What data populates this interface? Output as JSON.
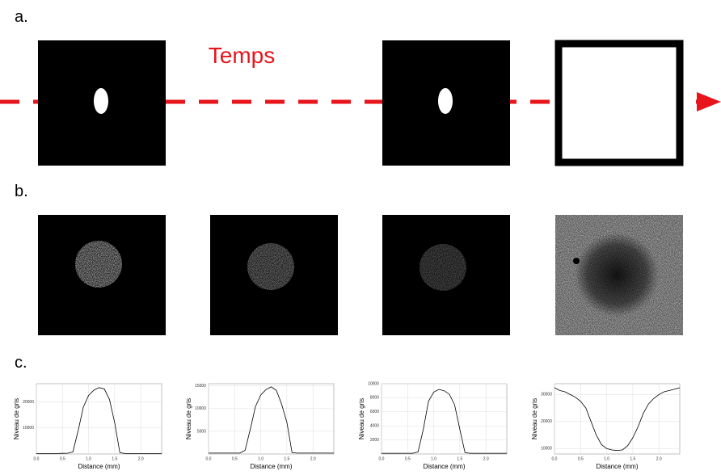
{
  "labels": {
    "a": "a.",
    "b": "b.",
    "c": "c."
  },
  "annotation": "Temps",
  "chart_data": [
    {
      "type": "line",
      "xlabel": "Distance (mm)",
      "ylabel": "Niveau de gris",
      "color": "#000000",
      "grid": true,
      "x": [
        0,
        0.1,
        0.2,
        0.3,
        0.4,
        0.5,
        0.6,
        0.7,
        0.8,
        0.9,
        1.0,
        1.1,
        1.2,
        1.3,
        1.4,
        1.5,
        1.6,
        1.7,
        1.8,
        1.9,
        2.0,
        2.1,
        2.2,
        2.3,
        2.4
      ],
      "values": [
        200,
        200,
        200,
        200,
        200,
        250,
        300,
        800,
        9000,
        18000,
        22500,
        24500,
        25500,
        25000,
        21000,
        12000,
        500,
        200,
        200,
        200,
        200,
        200,
        200,
        200,
        200
      ],
      "xlim": [
        0,
        2.4
      ],
      "ylim": [
        0,
        27000
      ],
      "xticks": [
        {
          "value": 0,
          "label": "0.0"
        },
        {
          "value": 0.5,
          "label": "0.5"
        },
        {
          "value": 1,
          "label": "1.0"
        },
        {
          "value": 1.5,
          "label": "1.5"
        },
        {
          "value": 2,
          "label": "2.0"
        }
      ],
      "yticks": [
        10000,
        20000
      ]
    },
    {
      "type": "line",
      "xlabel": "Distance (mm)",
      "ylabel": "Niveau de gris",
      "color": "#000000",
      "grid": true,
      "x": [
        0,
        0.1,
        0.2,
        0.3,
        0.4,
        0.5,
        0.6,
        0.7,
        0.8,
        0.9,
        1.0,
        1.1,
        1.2,
        1.3,
        1.4,
        1.5,
        1.6,
        1.7,
        1.8,
        1.9,
        2.0,
        2.1,
        2.2,
        2.3,
        2.4
      ],
      "values": [
        200,
        200,
        200,
        200,
        200,
        200,
        200,
        800,
        5500,
        10500,
        13000,
        14200,
        14800,
        14000,
        11000,
        7000,
        300,
        200,
        200,
        200,
        200,
        200,
        200,
        200,
        200
      ],
      "xlim": [
        0,
        2.4
      ],
      "ylim": [
        0,
        15500
      ],
      "xticks": [
        {
          "value": 0,
          "label": "0.0"
        },
        {
          "value": 0.5,
          "label": "0.5"
        },
        {
          "value": 1,
          "label": "1.0"
        },
        {
          "value": 1.5,
          "label": "1.5"
        },
        {
          "value": 2,
          "label": "2.0"
        }
      ],
      "yticks": [
        5000,
        10000,
        15000
      ]
    },
    {
      "type": "line",
      "xlabel": "Distance (mm)",
      "ylabel": "Niveau de gris",
      "color": "#000000",
      "grid": true,
      "x": [
        0,
        0.1,
        0.2,
        0.3,
        0.4,
        0.5,
        0.6,
        0.7,
        0.8,
        0.9,
        1.0,
        1.1,
        1.2,
        1.3,
        1.4,
        1.5,
        1.6,
        1.7,
        1.8,
        1.9,
        2.0,
        2.1,
        2.2,
        2.3,
        2.4
      ],
      "values": [
        100,
        100,
        100,
        100,
        100,
        100,
        100,
        300,
        3500,
        7500,
        8800,
        9200,
        9000,
        8500,
        7000,
        3500,
        200,
        100,
        100,
        100,
        100,
        100,
        100,
        100,
        100
      ],
      "xlim": [
        0,
        2.4
      ],
      "ylim": [
        0,
        10000
      ],
      "xticks": [
        {
          "value": 0,
          "label": "0.0"
        },
        {
          "value": 0.5,
          "label": "0.5"
        },
        {
          "value": 1,
          "label": "1.0"
        },
        {
          "value": 1.5,
          "label": "1.5"
        },
        {
          "value": 2,
          "label": "2.0"
        }
      ],
      "yticks": [
        2000,
        4000,
        6000,
        8000,
        10000
      ]
    },
    {
      "type": "line",
      "xlabel": "Distance (mm)",
      "ylabel": "Niveau de gris",
      "color": "#000000",
      "grid": true,
      "x": [
        0,
        0.1,
        0.2,
        0.3,
        0.4,
        0.5,
        0.6,
        0.7,
        0.8,
        0.9,
        1.0,
        1.1,
        1.2,
        1.3,
        1.4,
        1.5,
        1.6,
        1.7,
        1.8,
        1.9,
        2.0,
        2.1,
        2.2,
        2.3,
        2.4
      ],
      "values": [
        32500,
        31500,
        31000,
        30000,
        29000,
        27500,
        25000,
        20000,
        15000,
        11500,
        10000,
        9500,
        9300,
        9500,
        11000,
        14000,
        18000,
        23000,
        26500,
        28500,
        30000,
        31000,
        31500,
        32000,
        32500
      ],
      "xlim": [
        0,
        2.4
      ],
      "ylim": [
        8000,
        34000
      ],
      "xticks": [
        {
          "value": 0,
          "label": "0.0"
        },
        {
          "value": 0.5,
          "label": "0.5"
        },
        {
          "value": 1,
          "label": "1.0"
        },
        {
          "value": 1.5,
          "label": "1.5"
        },
        {
          "value": 2,
          "label": "2.0"
        }
      ],
      "yticks": [
        10000,
        20000,
        30000
      ]
    }
  ]
}
